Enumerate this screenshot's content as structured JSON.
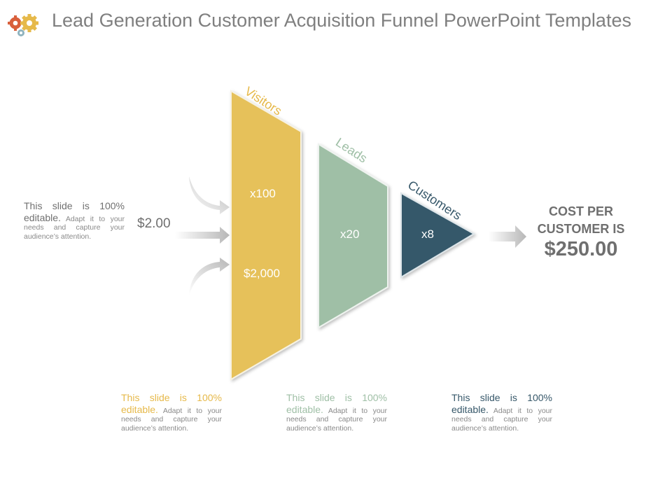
{
  "title": "Lead Generation Customer Acquisition Funnel PowerPoint Templates",
  "icons": {
    "header": "gears-icon",
    "arrows": "arrow-right-icon"
  },
  "colors": {
    "visitors": "#e6c15a",
    "leads": "#9fbfa6",
    "customers": "#34586a",
    "title": "#7f7f7f",
    "text": "#6f6f6f"
  },
  "input_price": "$2.00",
  "stages": [
    {
      "label": "Visitors",
      "multiplier": "x100",
      "cost": "$2,000"
    },
    {
      "label": "Leads",
      "multiplier": "x20"
    },
    {
      "label": "Customers",
      "multiplier": "x8"
    }
  ],
  "result": {
    "label": "COST PER CUSTOMER IS",
    "value": "$250.00"
  },
  "caption": {
    "lead": "This slide is 100% editable.",
    "body": "Adapt it to your needs and capture your audience’s attention."
  }
}
